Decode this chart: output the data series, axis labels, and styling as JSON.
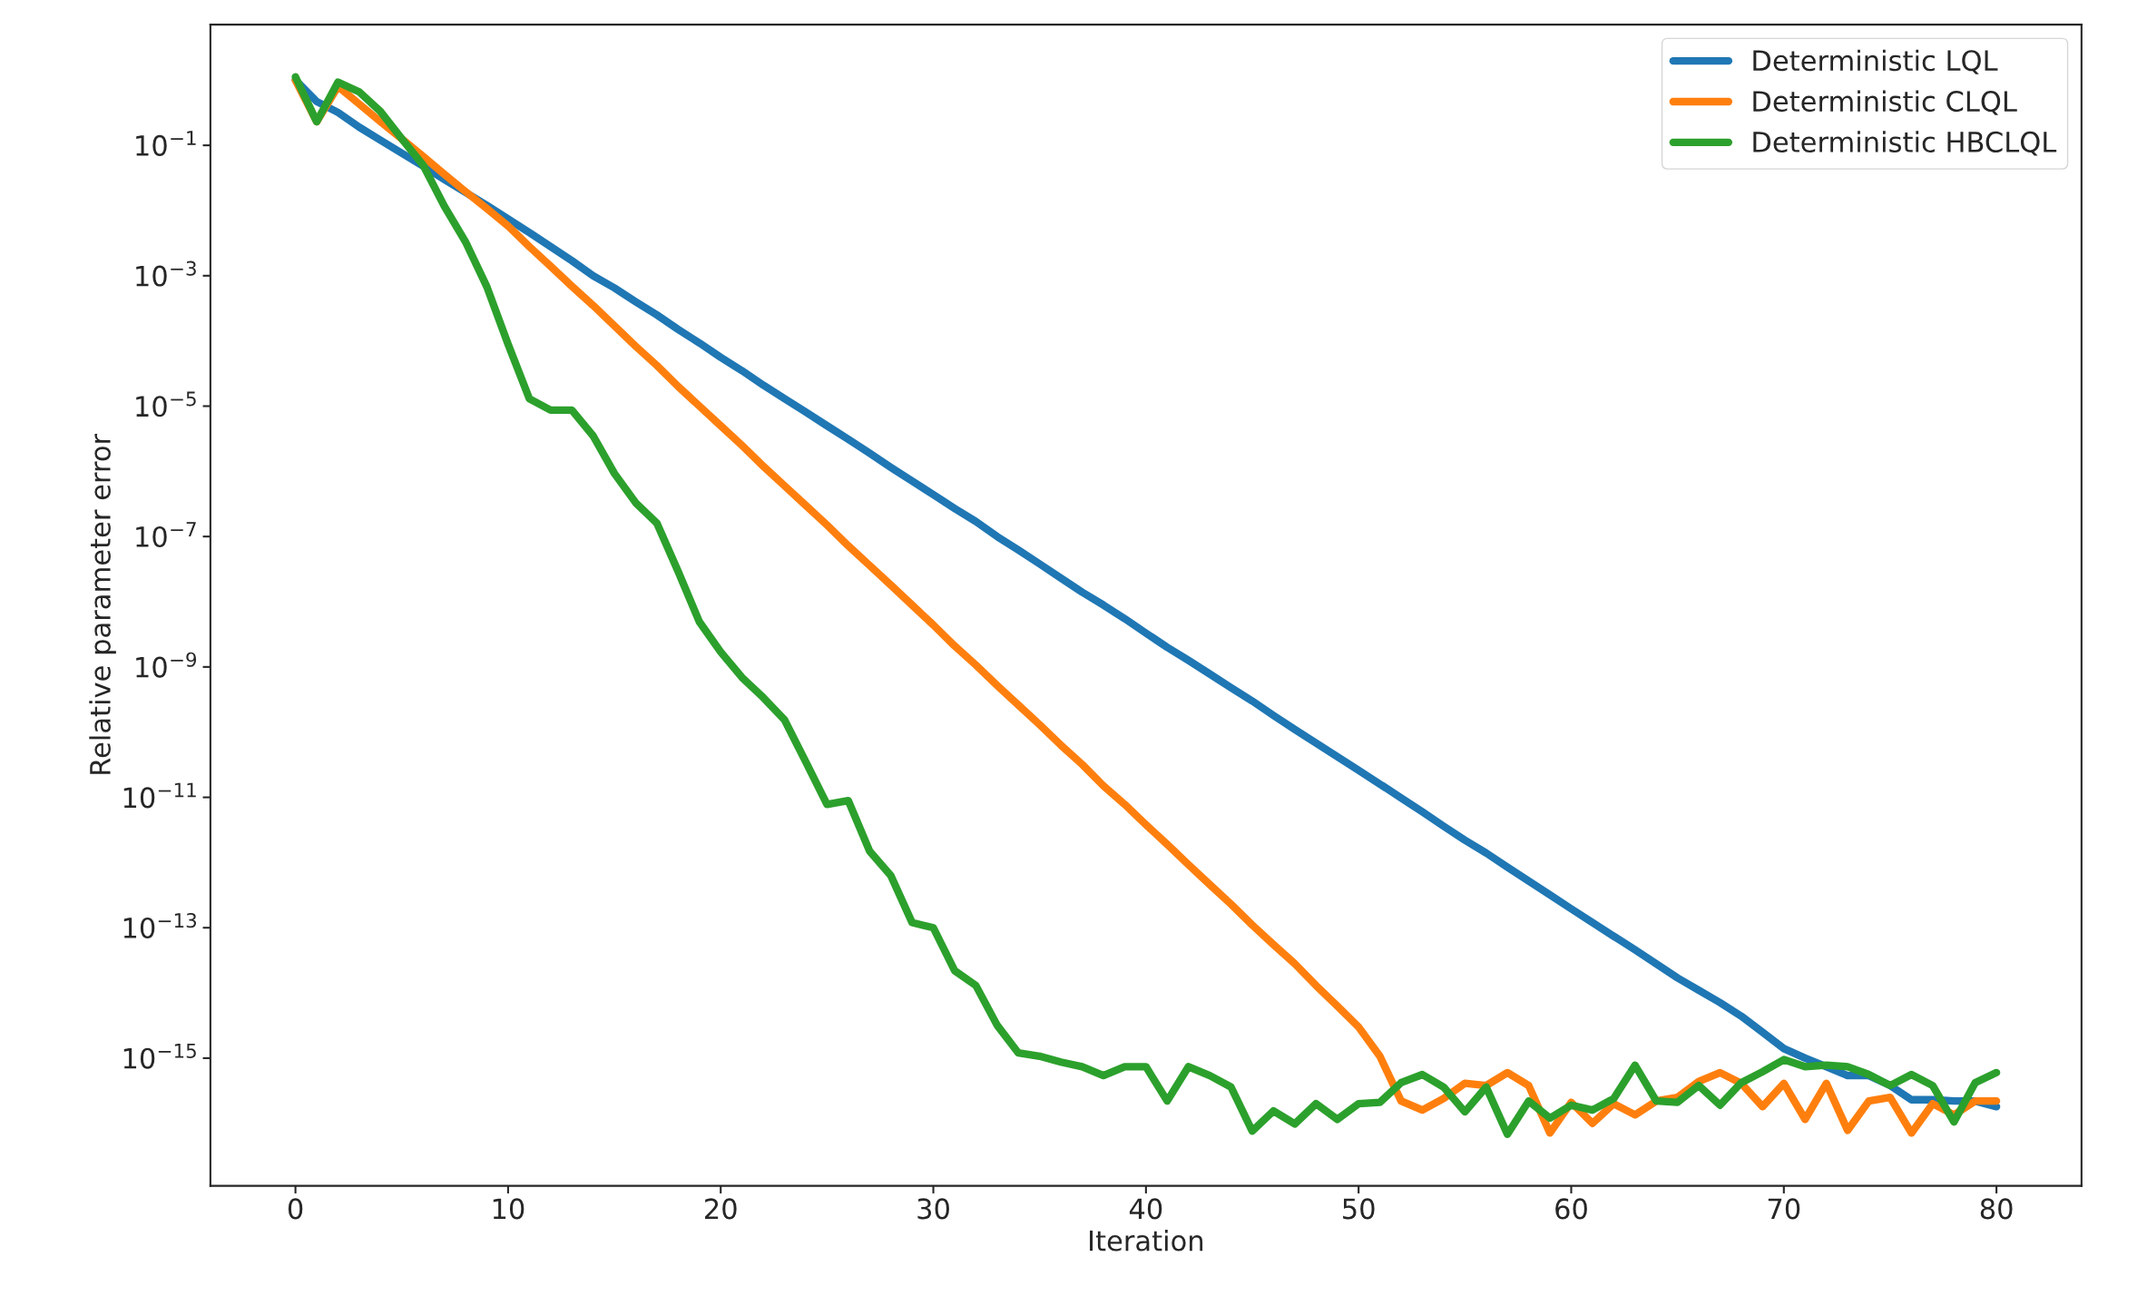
{
  "chart_data": {
    "type": "line",
    "xlabel": "Iteration",
    "ylabel": "Relative parameter error",
    "log": "y",
    "legend": "top right",
    "grid": false,
    "marker": "none",
    "line_style": "solid",
    "x": [
      0,
      1,
      2,
      3,
      4,
      5,
      6,
      7,
      8,
      9,
      10,
      11,
      12,
      13,
      14,
      15,
      16,
      17,
      18,
      19,
      20,
      21,
      22,
      23,
      24,
      25,
      26,
      27,
      28,
      29,
      30,
      31,
      32,
      33,
      34,
      35,
      36,
      37,
      38,
      39,
      40,
      41,
      42,
      43,
      44,
      45,
      46,
      47,
      48,
      49,
      50,
      51,
      52,
      53,
      54,
      55,
      56,
      57,
      58,
      59,
      60,
      61,
      62,
      63,
      64,
      65,
      66,
      67,
      68,
      69,
      70,
      71,
      72,
      73,
      74,
      75,
      76,
      77,
      78,
      79,
      80
    ],
    "xlim": [
      -4,
      84
    ],
    "xticks": [
      0,
      10,
      20,
      30,
      40,
      50,
      60,
      70,
      80
    ],
    "ylim": [
      1.1e-17,
      7.1
    ],
    "yticks": [
      {
        "value": 0.1,
        "label": "10$^{−1}$"
      },
      {
        "value": 0.001,
        "label": "10$^{−3}$"
      },
      {
        "value": 1e-05,
        "label": "10$^{−5}$"
      },
      {
        "value": 1e-07,
        "label": "10$^{−7}$"
      },
      {
        "value": 1e-09,
        "label": "10$^{−9}$"
      },
      {
        "value": 1e-11,
        "label": "10$^{−11}$"
      },
      {
        "value": 1e-13,
        "label": "10$^{−13}$"
      },
      {
        "value": 1e-15,
        "label": "10$^{−15}$"
      }
    ],
    "series": [
      {
        "name": "Deterministic LQL",
        "color": "#1f77b4",
        "values": [
          1,
          0.47,
          0.32,
          0.19,
          0.12,
          0.076,
          0.048,
          0.03,
          0.019,
          0.012,
          0.0074,
          0.0046,
          0.0028,
          0.0017,
          0.001,
          0.00065,
          0.0004,
          0.00025,
          0.00015,
          9.3e-05,
          5.6e-05,
          3.5e-05,
          2.1e-05,
          1.3e-05,
          8.1e-06,
          5e-06,
          3.1e-06,
          1.9e-06,
          1.15e-06,
          7.1e-07,
          4.4e-07,
          2.7e-07,
          1.7e-07,
          1e-07,
          6.2e-08,
          3.8e-08,
          2.3e-08,
          1.4e-08,
          8.9e-09,
          5.5e-09,
          3.3e-09,
          2e-09,
          1.26e-09,
          7.8e-10,
          4.8e-10,
          3e-10,
          1.8e-10,
          1.1e-10,
          6.8e-11,
          4.2e-11,
          2.6e-11,
          1.6e-11,
          9.8e-12,
          6e-12,
          3.6e-12,
          2.2e-12,
          1.4e-12,
          8.5e-13,
          5.2e-13,
          3.2e-13,
          1.95e-13,
          1.2e-13,
          7.4e-14,
          4.6e-14,
          2.8e-14,
          1.7e-14,
          1.1e-14,
          7.1e-15,
          4.4e-15,
          2.5e-15,
          1.4e-15,
          1e-15,
          7.4e-16,
          5.4e-16,
          5.4e-16,
          3.8e-16,
          2.3e-16,
          2.3e-16,
          2.2e-16,
          2.2e-16,
          1.8e-16
        ]
      },
      {
        "name": "Deterministic CLQL",
        "color": "#ff7f0e",
        "values": [
          1,
          0.23,
          0.8,
          0.43,
          0.23,
          0.126,
          0.068,
          0.036,
          0.0195,
          0.0107,
          0.0058,
          0.0028,
          0.0014,
          0.00069,
          0.00035,
          0.00017,
          8.3e-05,
          4.2e-05,
          2e-05,
          1e-05,
          5e-06,
          2.5e-06,
          1.2e-06,
          6e-07,
          3e-07,
          1.5e-07,
          7.2e-08,
          3.6e-08,
          1.8e-08,
          8.9e-09,
          4.4e-09,
          2.1e-09,
          1.07e-09,
          5.2e-10,
          2.6e-10,
          1.3e-10,
          6.3e-11,
          3.2e-11,
          1.5e-11,
          7.8e-12,
          3.8e-12,
          1.9e-12,
          9.3e-13,
          4.6e-13,
          2.3e-13,
          1.1e-13,
          5.5e-14,
          2.8e-14,
          1.3e-14,
          6.3e-15,
          3e-15,
          1.07e-15,
          2.2e-16,
          1.6e-16,
          2.4e-16,
          4.1e-16,
          3.8e-16,
          6e-16,
          3.8e-16,
          7.1e-17,
          2.1e-16,
          1e-16,
          2e-16,
          1.35e-16,
          2.2e-16,
          2.5e-16,
          4.4e-16,
          6e-16,
          4.1e-16,
          1.8e-16,
          4.1e-16,
          1.15e-16,
          4.1e-16,
          7.8e-17,
          2.2e-16,
          2.5e-16,
          7.1e-17,
          2e-16,
          1.35e-16,
          2.2e-16,
          2.2e-16
        ]
      },
      {
        "name": "Deterministic HBCLQL",
        "color": "#2ca02c",
        "values": [
          1.12,
          0.23,
          0.93,
          0.66,
          0.33,
          0.126,
          0.05,
          0.0117,
          0.0033,
          0.00068,
          8.9e-05,
          1.3e-05,
          8.7e-06,
          8.7e-06,
          3.5e-06,
          9.3e-07,
          3.3e-07,
          1.6e-07,
          2.9e-08,
          4.9e-09,
          1.7e-09,
          6.9e-10,
          3.4e-10,
          1.55e-10,
          3.5e-11,
          7.8e-12,
          8.9e-12,
          1.5e-12,
          6.3e-13,
          1.2e-13,
          1e-13,
          2.2e-14,
          1.3e-14,
          3.2e-15,
          1.2e-15,
          1.07e-15,
          8.7e-16,
          7.4e-16,
          5.4e-16,
          7.4e-16,
          7.4e-16,
          2.2e-16,
          7.4e-16,
          5.4e-16,
          3.6e-16,
          7.6e-17,
          1.55e-16,
          9.8e-17,
          2e-16,
          1.15e-16,
          2e-16,
          2.1e-16,
          4.2e-16,
          5.6e-16,
          3.6e-16,
          1.5e-16,
          3.6e-16,
          6.8e-17,
          2.2e-16,
          1.2e-16,
          1.9e-16,
          1.6e-16,
          2.4e-16,
          7.8e-16,
          2.2e-16,
          2.1e-16,
          3.8e-16,
          1.9e-16,
          4.2e-16,
          6.2e-16,
          9.5e-16,
          7.4e-16,
          7.8e-16,
          7.4e-16,
          5.6e-16,
          3.8e-16,
          5.6e-16,
          3.8e-16,
          1.05e-16,
          4.2e-16,
          6e-16
        ]
      }
    ]
  }
}
